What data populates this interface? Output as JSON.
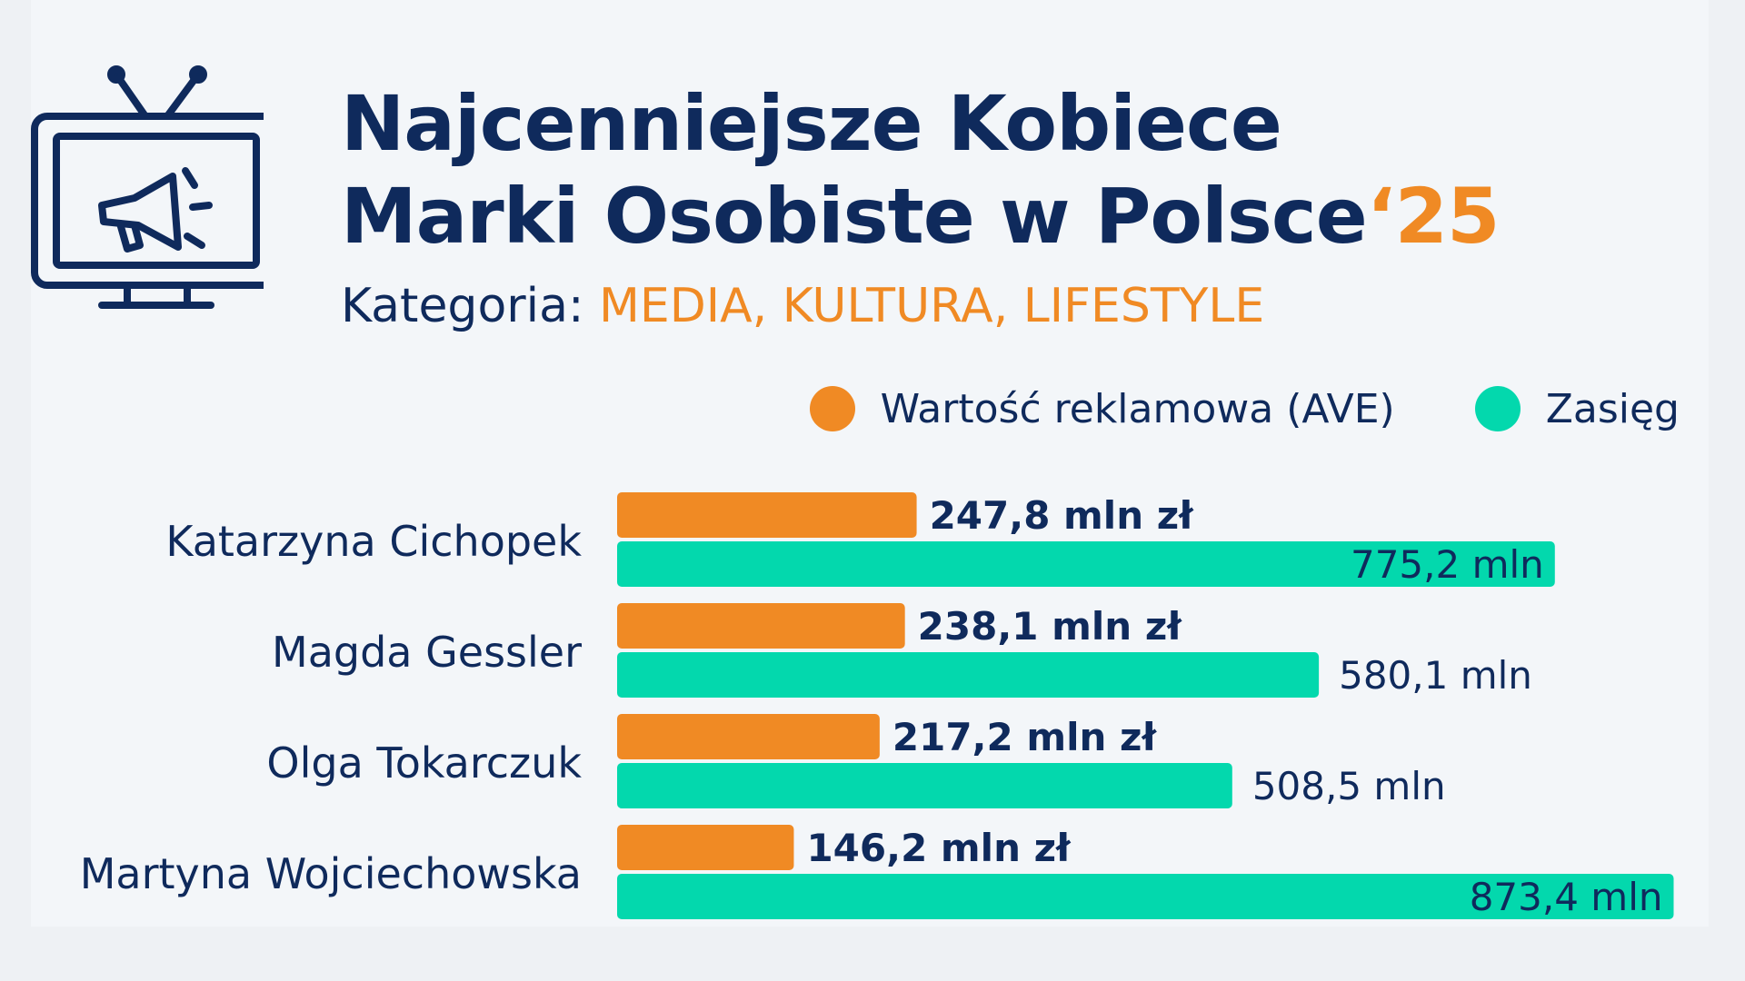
{
  "header": {
    "title_line1": "Najcenniejsze Kobiece",
    "title_line2": "Marki Osobiste w Polsce",
    "title_year": "‘25",
    "category_label": "Kategoria: ",
    "category_value": "MEDIA, KULTURA, LIFESTYLE"
  },
  "icon": "tv-megaphone-icon",
  "colors": {
    "navy": "#0f2a5c",
    "orange": "#f08a24",
    "teal": "#03d8ad"
  },
  "chart_data": {
    "type": "bar",
    "orientation": "horizontal",
    "title": "Najcenniejsze Kobiece Marki Osobiste w Polsce‘25",
    "categories": [
      "Katarzyna Cichopek",
      "Magda Gessler",
      "Olga Tokarczuk",
      "Martyna Wojciechowska"
    ],
    "series": [
      {
        "name": "Wartość reklamowa (AVE)",
        "color": "#f08a24",
        "values": [
          247.8,
          238.1,
          217.2,
          146.2
        ],
        "labels": [
          "247,8 mln zł",
          "238,1 mln zł",
          "217,2 mln zł",
          "146,2 mln zł"
        ]
      },
      {
        "name": "Zasięg",
        "color": "#03d8ad",
        "values": [
          775.2,
          580.1,
          508.5,
          873.4
        ],
        "labels": [
          "775,2 mln",
          "580,1 mln",
          "508,5 mln",
          "873,4 mln"
        ]
      }
    ],
    "legend_position": "top-right",
    "grid": false
  }
}
